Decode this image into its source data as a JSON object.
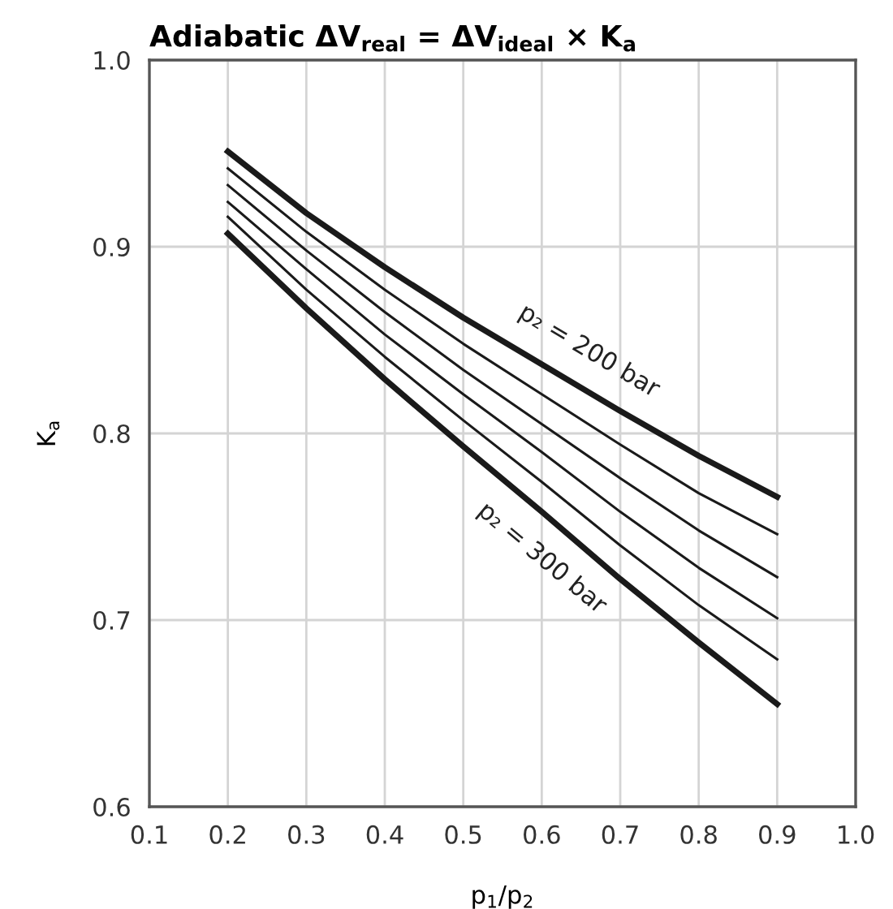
{
  "chart_data": {
    "type": "line",
    "title": "Adiabatic ΔV$_{real}$ = ΔV$_{ideal}$ × K$_{a}$",
    "xlabel": "p$_{1}$/p$_{2}$",
    "ylabel": "K$_{a}$",
    "x": [
      0.2,
      0.3,
      0.4,
      0.5,
      0.6,
      0.7,
      0.8,
      0.9
    ],
    "series": [
      {
        "color": "#1a1a1a",
        "values": [
          0.951,
          0.918,
          0.889,
          0.862,
          0.837,
          0.812,
          0.788,
          0.766
        ]
      },
      {
        "color": "#1a1a1a",
        "values": [
          0.942,
          0.908,
          0.877,
          0.848,
          0.821,
          0.794,
          0.768,
          0.746
        ]
      },
      {
        "color": "#1a1a1a",
        "values": [
          0.933,
          0.898,
          0.865,
          0.834,
          0.805,
          0.776,
          0.748,
          0.723
        ]
      },
      {
        "color": "#1a1a1a",
        "values": [
          0.924,
          0.888,
          0.853,
          0.821,
          0.79,
          0.758,
          0.728,
          0.701
        ]
      },
      {
        "color": "#1a1a1a",
        "values": [
          0.916,
          0.877,
          0.841,
          0.807,
          0.774,
          0.74,
          0.708,
          0.679
        ]
      },
      {
        "color": "#1a1a1a",
        "values": [
          0.907,
          0.867,
          0.829,
          0.793,
          0.758,
          0.722,
          0.688,
          0.655
        ]
      }
    ],
    "annotations": [
      "p₂ = 200 bar",
      "p₂ = 300 bar"
    ],
    "xlim": [
      0.1,
      1.0
    ],
    "ylim": [
      0.6,
      1.0
    ],
    "xticks": [
      0.1,
      0.2,
      0.3,
      0.4,
      0.5,
      0.6,
      0.7,
      0.8,
      0.9,
      {
        "value": 1.0,
        "label": "1.0"
      }
    ],
    "yticks": [
      0.6,
      0.7,
      0.8,
      0.9,
      {
        "value": 1.0,
        "label": "1.0"
      }
    ],
    "grid": true,
    "line_style": "solid"
  }
}
